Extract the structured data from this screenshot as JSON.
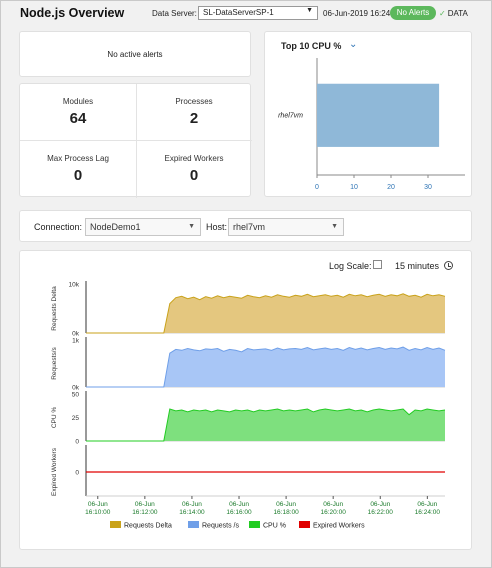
{
  "header": {
    "title": "Node.js Overview",
    "data_server_label": "Data Server:",
    "data_server_value": "SL-DataServerSP-1",
    "timestamp": "06-Jun-2019 16:24",
    "alerts_badge": "No Alerts",
    "data_indicator": "DATA"
  },
  "alerts": {
    "message": "No active alerts"
  },
  "stats": {
    "modules": {
      "label": "Modules",
      "value": "64"
    },
    "processes": {
      "label": "Processes",
      "value": "2"
    },
    "max_lag": {
      "label": "Max Process Lag",
      "value": "0"
    },
    "expired_workers": {
      "label": "Expired Workers",
      "value": "0"
    }
  },
  "top10": {
    "title": "Top 10 CPU %",
    "chart_data": {
      "type": "bar",
      "orientation": "horizontal",
      "categories": [
        "rhel7vm"
      ],
      "values": [
        33
      ],
      "xlim": [
        0,
        40
      ],
      "x_ticks": [
        "0",
        "10",
        "20",
        "30"
      ],
      "color": "#8fb8d8"
    }
  },
  "connection": {
    "connection_label": "Connection:",
    "connection_value": "NodeDemo1",
    "host_label": "Host:",
    "host_value": "rhel7vm"
  },
  "trend": {
    "log_scale_label": "Log Scale:",
    "log_scale_checked": false,
    "time_range": "15 minutes",
    "x_ticks": [
      [
        "06-Jun",
        "16:10:00"
      ],
      [
        "06-Jun",
        "16:12:00"
      ],
      [
        "06-Jun",
        "16:14:00"
      ],
      [
        "06-Jun",
        "16:16:00"
      ],
      [
        "06-Jun",
        "16:18:00"
      ],
      [
        "06-Jun",
        "16:20:00"
      ],
      [
        "06-Jun",
        "16:22:00"
      ],
      [
        "06-Jun",
        "16:24:00"
      ]
    ],
    "legend": [
      {
        "name": "Requests Delta",
        "color": "#c9a21a"
      },
      {
        "name": "Requests /s",
        "color": "#6f9fe8"
      },
      {
        "name": "CPU %",
        "color": "#22cc22"
      },
      {
        "name": "Expired Workers",
        "color": "#e00000"
      }
    ]
  },
  "chart_data": [
    {
      "type": "area",
      "ylabel": "Requests Delta",
      "y_ticks": [
        "10k",
        "0k"
      ],
      "ylim": [
        0,
        10000
      ],
      "x_range": [
        "16:09:30",
        "16:24:45"
      ],
      "fill": "#e4c77f",
      "stroke": "#c9a21a",
      "values": [
        0,
        0,
        0,
        0,
        0,
        0,
        0,
        0,
        0,
        0,
        0,
        0,
        0,
        0,
        6000,
        7200,
        7500,
        7000,
        7300,
        6800,
        7400,
        7100,
        7600,
        7200,
        7500,
        7300,
        7100,
        7700,
        7400,
        7200,
        7600,
        7300,
        7800,
        7500,
        7300,
        7700,
        7500,
        7900,
        7400,
        7600,
        7800,
        7500,
        7700,
        7300,
        7900,
        7600,
        7800,
        7400,
        7700,
        7900,
        7500,
        7800,
        7600,
        8000,
        7500,
        7700,
        7300,
        7900,
        7600,
        7800,
        7500
      ]
    },
    {
      "type": "area",
      "ylabel": "Requests/s",
      "y_ticks": [
        "1k",
        "0k"
      ],
      "ylim": [
        0,
        1000
      ],
      "x_range": [
        "16:09:30",
        "16:24:45"
      ],
      "fill": "#a8c6f6",
      "stroke": "#6f9fe8",
      "values": [
        0,
        0,
        0,
        0,
        0,
        0,
        0,
        0,
        0,
        0,
        0,
        0,
        0,
        0,
        720,
        800,
        780,
        820,
        790,
        770,
        810,
        800,
        820,
        760,
        800,
        780,
        750,
        820,
        790,
        800,
        810,
        780,
        830,
        790,
        810,
        820,
        800,
        840,
        790,
        810,
        830,
        800,
        820,
        780,
        840,
        800,
        830,
        790,
        820,
        840,
        800,
        830,
        810,
        850,
        780,
        820,
        790,
        840,
        800,
        830,
        780
      ]
    },
    {
      "type": "area",
      "ylabel": "CPU %",
      "y_ticks": [
        "50",
        "25",
        "0"
      ],
      "ylim": [
        0,
        50
      ],
      "x_range": [
        "16:09:30",
        "16:24:45"
      ],
      "fill": "#7ee07e",
      "stroke": "#22cc22",
      "values": [
        0,
        0,
        0,
        0,
        0,
        0,
        0,
        0,
        0,
        0,
        0,
        0,
        0,
        0,
        34,
        32,
        33,
        31,
        33,
        32,
        33,
        31,
        33,
        32,
        31,
        33,
        32,
        33,
        31,
        33,
        32,
        33,
        34,
        32,
        33,
        32,
        33,
        34,
        31,
        33,
        34,
        33,
        32,
        33,
        34,
        32,
        33,
        31,
        33,
        34,
        33,
        32,
        33,
        34,
        28,
        33,
        32,
        34,
        33,
        32,
        33
      ]
    },
    {
      "type": "line",
      "ylabel": "Expired Workers",
      "y_ticks": [
        "0"
      ],
      "ylim": [
        -1,
        1
      ],
      "x_range": [
        "16:09:30",
        "16:24:45"
      ],
      "stroke": "#e00000",
      "values": [
        0,
        0,
        0,
        0,
        0,
        0,
        0,
        0,
        0,
        0,
        0,
        0,
        0,
        0,
        0,
        0,
        0,
        0,
        0,
        0,
        0,
        0,
        0,
        0,
        0,
        0,
        0,
        0,
        0,
        0,
        0,
        0,
        0,
        0,
        0,
        0,
        0,
        0,
        0,
        0,
        0,
        0,
        0,
        0,
        0,
        0,
        0,
        0,
        0,
        0,
        0,
        0,
        0,
        0,
        0,
        0,
        0,
        0,
        0,
        0,
        0
      ]
    }
  ]
}
